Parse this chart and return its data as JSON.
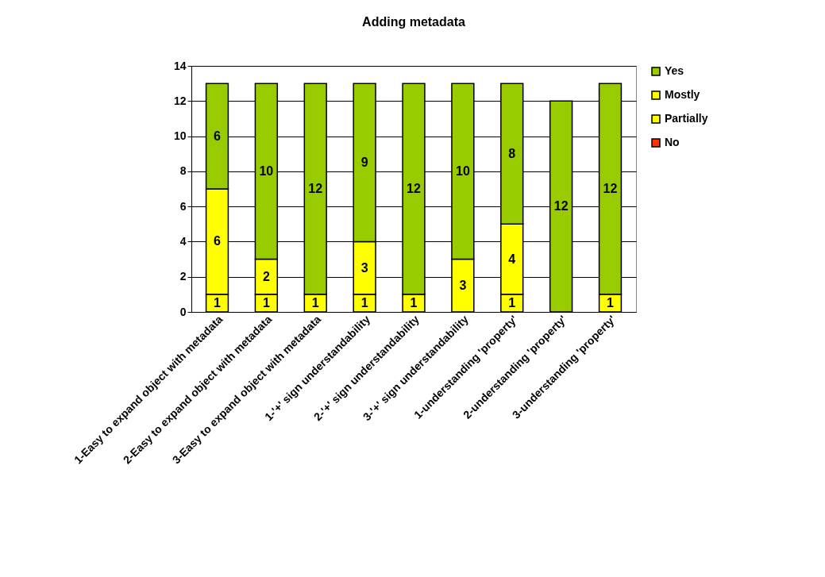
{
  "chart_data": {
    "type": "bar",
    "title": "Adding metadata",
    "stacked": true,
    "categories": [
      "1-Easy to expand object with metadata",
      "2-Easy to expand object with metadata",
      "3-Easy to expand object with metadata",
      "1-'+' sign understandability",
      "2-'+' sign understandability",
      "3-'+' sign understandability",
      "1-understanding 'property'",
      "2-understanding 'property'",
      "3-understanding 'property'"
    ],
    "series": [
      {
        "name": "No",
        "color": "#ff3300",
        "values": [
          0,
          0,
          0,
          0,
          0,
          0,
          0,
          0,
          0
        ],
        "value_labels": [
          null,
          null,
          null,
          null,
          null,
          null,
          null,
          null,
          null
        ]
      },
      {
        "name": "Partially",
        "color": "#ffff00",
        "values": [
          1,
          1,
          1,
          1,
          1,
          0,
          1,
          0,
          0
        ],
        "value_labels": [
          "1",
          "1",
          "1",
          "1",
          "1",
          null,
          "1",
          null,
          null
        ]
      },
      {
        "name": "Mostly",
        "color": "#ffff00",
        "values": [
          6,
          2,
          0,
          3,
          0,
          3,
          4,
          0,
          1
        ],
        "value_labels": [
          "6",
          "2",
          null,
          "3",
          null,
          "3",
          "4",
          null,
          "1"
        ]
      },
      {
        "name": "Yes",
        "color": "#99cc00",
        "values": [
          6,
          10,
          12,
          9,
          12,
          10,
          8,
          12,
          12
        ],
        "value_labels": [
          "6",
          "10",
          "12",
          "9",
          "12",
          "10",
          "8",
          "12",
          "12"
        ]
      }
    ],
    "ylim": [
      0,
      14
    ],
    "yticks": [
      0,
      2,
      4,
      6,
      8,
      10,
      12,
      14
    ],
    "grid": "y",
    "legend": "right"
  }
}
